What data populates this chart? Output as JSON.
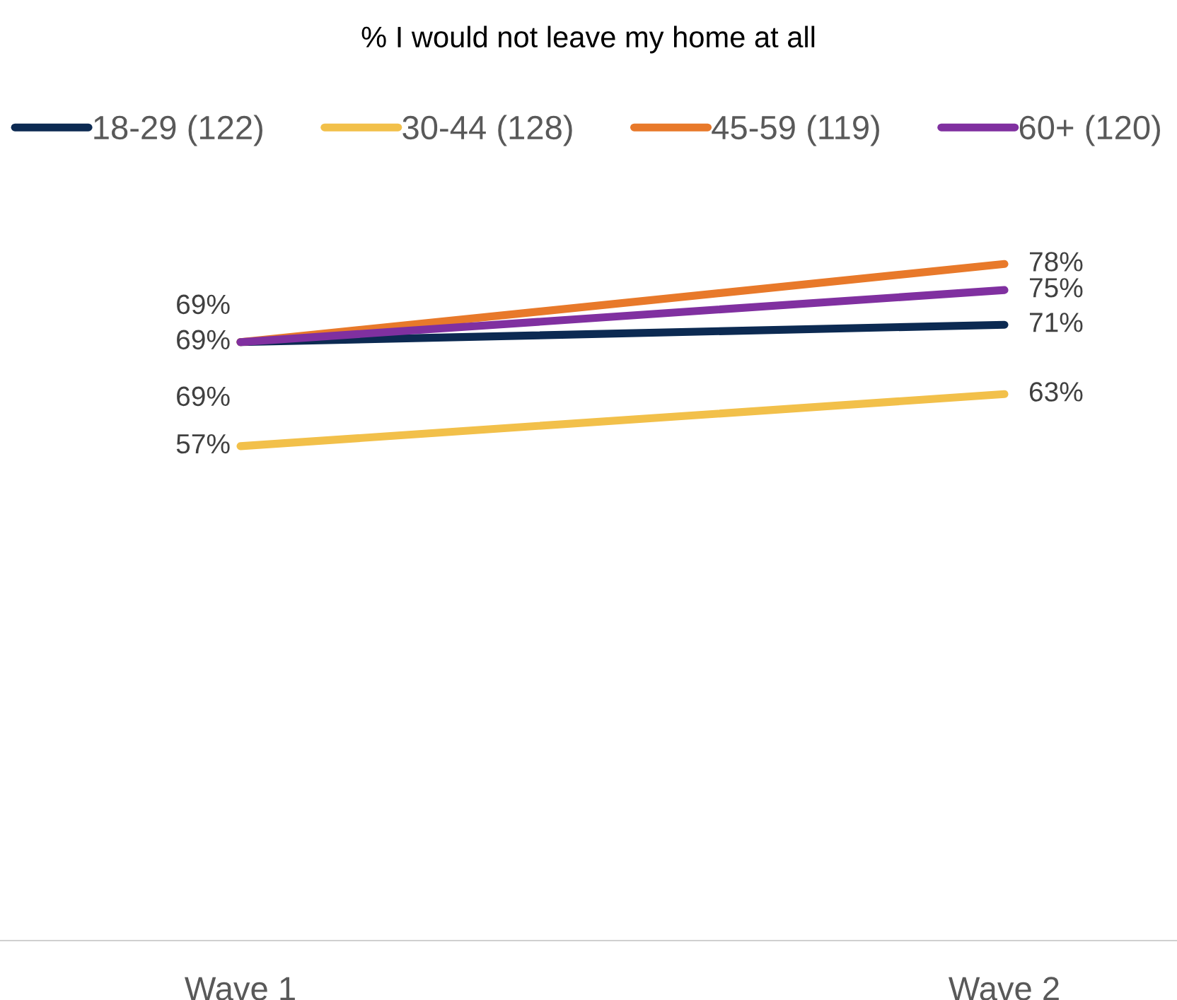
{
  "chart_data": {
    "type": "line",
    "title": "% I would not leave my home at all",
    "categories": [
      "Wave 1",
      "Wave 2"
    ],
    "legend": "top",
    "grid": false,
    "series": [
      {
        "name": "18-29 (122)",
        "color": "#0c2a52",
        "values": [
          69,
          71
        ],
        "value_labels": [
          "69%",
          "71%"
        ]
      },
      {
        "name": "30-44 (128)",
        "color": "#f2c04a",
        "values": [
          57,
          63
        ],
        "value_labels": [
          "57%",
          "63%"
        ]
      },
      {
        "name": "45-59 (119)",
        "color": "#e8792a",
        "values": [
          69,
          78
        ],
        "value_labels": [
          "69%",
          "78%"
        ]
      },
      {
        "name": "60+ (120)",
        "color": "#8030a0",
        "values": [
          69,
          75
        ],
        "value_labels": [
          "69%",
          "75%"
        ]
      }
    ]
  }
}
